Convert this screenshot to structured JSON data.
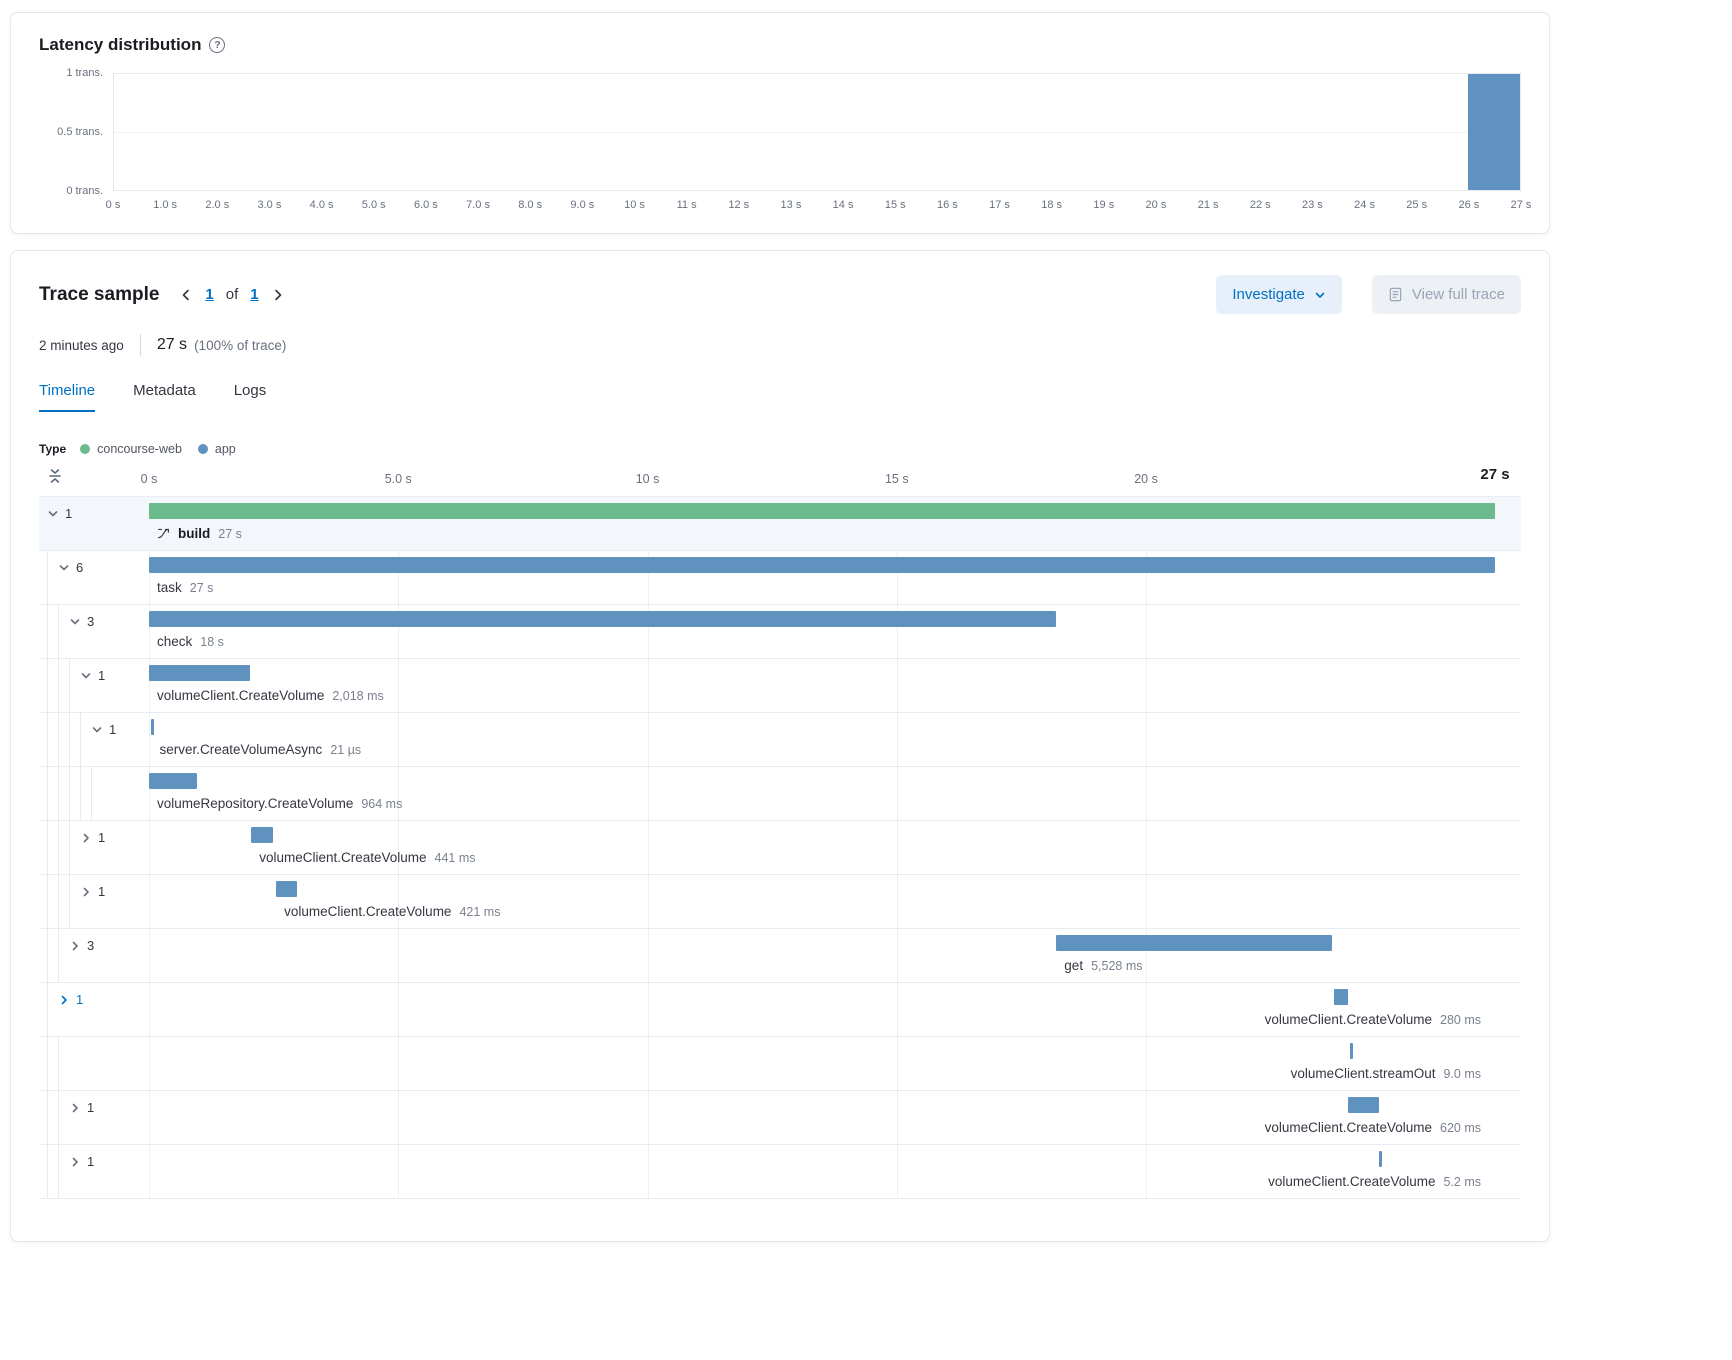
{
  "colors": {
    "green": "#6cbb8d",
    "blue": "#6092c0",
    "link": "#0071c2"
  },
  "latency_panel": {
    "title": "Latency distribution",
    "help": "?",
    "chart_data": {
      "type": "bar",
      "title": "Latency distribution",
      "xlim": [
        0,
        27
      ],
      "ylim": [
        0,
        1
      ],
      "x_unit": "seconds",
      "y_unit": "transactions",
      "x_ticks": [
        "0 s",
        "1.0 s",
        "2.0 s",
        "3.0 s",
        "4.0 s",
        "5.0 s",
        "6.0 s",
        "7.0 s",
        "8.0 s",
        "9.0 s",
        "10 s",
        "11 s",
        "12 s",
        "13 s",
        "14 s",
        "15 s",
        "16 s",
        "17 s",
        "18 s",
        "19 s",
        "20 s",
        "21 s",
        "22 s",
        "23 s",
        "24 s",
        "25 s",
        "26 s",
        "27 s"
      ],
      "y_ticks": [
        "1 trans.",
        "0.5 trans.",
        "0 trans."
      ],
      "bars": [
        {
          "x0": 26,
          "x1": 27,
          "value": 1
        }
      ],
      "bar_color": "#6092c0",
      "grid": "horizontal-mid",
      "legend": "none"
    }
  },
  "trace_panel": {
    "title": "Trace sample",
    "pagination": {
      "page": "1",
      "of": "of",
      "total": "1"
    },
    "meta": {
      "age": "2 minutes ago",
      "duration": "27 s",
      "percent": "(100% of trace)"
    },
    "actions": {
      "investigate": "Investigate",
      "view_full_trace": "View full trace"
    },
    "tabs": [
      {
        "label": "Timeline",
        "active": true
      },
      {
        "label": "Metadata",
        "active": false
      },
      {
        "label": "Logs",
        "active": false
      }
    ],
    "legend": {
      "label": "Type",
      "items": [
        {
          "name": "concourse-web",
          "color": "#6cbb8d"
        },
        {
          "name": "app",
          "color": "#6092c0"
        }
      ]
    },
    "timeline": {
      "duration_s": 27,
      "axis_ticks": [
        {
          "label": "0 s",
          "s": 0
        },
        {
          "label": "5.0 s",
          "s": 5
        },
        {
          "label": "10 s",
          "s": 10
        },
        {
          "label": "15 s",
          "s": 15
        },
        {
          "label": "20 s",
          "s": 20
        },
        {
          "label": "27 s",
          "s": 27,
          "end": true
        }
      ],
      "grid_s": [
        0,
        5,
        10,
        15,
        20
      ],
      "rows": [
        {
          "level": 0,
          "chevron": "down",
          "count": "1",
          "service": "concourse-web",
          "color": "#6cbb8d",
          "start_s": 0,
          "dur_s": 27,
          "name": "build",
          "duration_label": "27 s",
          "bold": true,
          "icon": "transaction-icon",
          "selected": true
        },
        {
          "level": 1,
          "chevron": "down",
          "count": "6",
          "service": "app",
          "color": "#6092c0",
          "start_s": 0,
          "dur_s": 27,
          "name": "task",
          "duration_label": "27 s"
        },
        {
          "level": 2,
          "chevron": "down",
          "count": "3",
          "service": "app",
          "color": "#6092c0",
          "start_s": 0,
          "dur_s": 18.2,
          "name": "check",
          "duration_label": "18 s"
        },
        {
          "level": 3,
          "chevron": "down",
          "count": "1",
          "service": "app",
          "color": "#6092c0",
          "start_s": 0,
          "dur_s": 2.018,
          "name": "volumeClient.CreateVolume",
          "duration_label": "2,018 ms"
        },
        {
          "level": 4,
          "chevron": "down",
          "count": "1",
          "service": "app",
          "color": "#6092c0",
          "start_s": 0.05,
          "dur_s": 0.021,
          "name": "server.CreateVolumeAsync",
          "duration_label": "21 µs"
        },
        {
          "level": 5,
          "chevron": null,
          "count": "",
          "service": "app",
          "color": "#6092c0",
          "start_s": 0,
          "dur_s": 0.964,
          "name": "volumeRepository.CreateVolume",
          "duration_label": "964 ms"
        },
        {
          "level": 3,
          "chevron": "right",
          "count": "1",
          "service": "app",
          "color": "#6092c0",
          "start_s": 2.05,
          "dur_s": 0.441,
          "name": "volumeClient.CreateVolume",
          "duration_label": "441 ms"
        },
        {
          "level": 3,
          "chevron": "right",
          "count": "1",
          "service": "app",
          "color": "#6092c0",
          "start_s": 2.55,
          "dur_s": 0.421,
          "name": "volumeClient.CreateVolume",
          "duration_label": "421 ms"
        },
        {
          "level": 2,
          "chevron": "right",
          "count": "3",
          "service": "app",
          "color": "#6092c0",
          "start_s": 18.2,
          "dur_s": 5.528,
          "name": "get",
          "duration_label": "5,528 ms"
        },
        {
          "level": 1,
          "chevron": "right",
          "count": "1",
          "chevron_active": true,
          "service": "app",
          "color": "#6092c0",
          "start_s": 23.78,
          "dur_s": 0.28,
          "name": "volumeClient.CreateVolume",
          "duration_label": "280 ms",
          "label_align": "right"
        },
        {
          "level": 2,
          "chevron": null,
          "count": "",
          "service": "app",
          "color": "#6092c0",
          "start_s": 24.1,
          "dur_s": 0.009,
          "name": "volumeClient.streamOut",
          "duration_label": "9.0 ms",
          "label_align": "right"
        },
        {
          "level": 2,
          "chevron": "right",
          "count": "1",
          "service": "app",
          "color": "#6092c0",
          "start_s": 24.05,
          "dur_s": 0.62,
          "name": "volumeClient.CreateVolume",
          "duration_label": "620 ms",
          "label_align": "right"
        },
        {
          "level": 2,
          "chevron": "right",
          "count": "1",
          "service": "app",
          "color": "#6092c0",
          "start_s": 24.68,
          "dur_s": 0.0052,
          "name": "volumeClient.CreateVolume",
          "duration_label": "5.2 ms",
          "label_align": "right"
        }
      ]
    }
  }
}
